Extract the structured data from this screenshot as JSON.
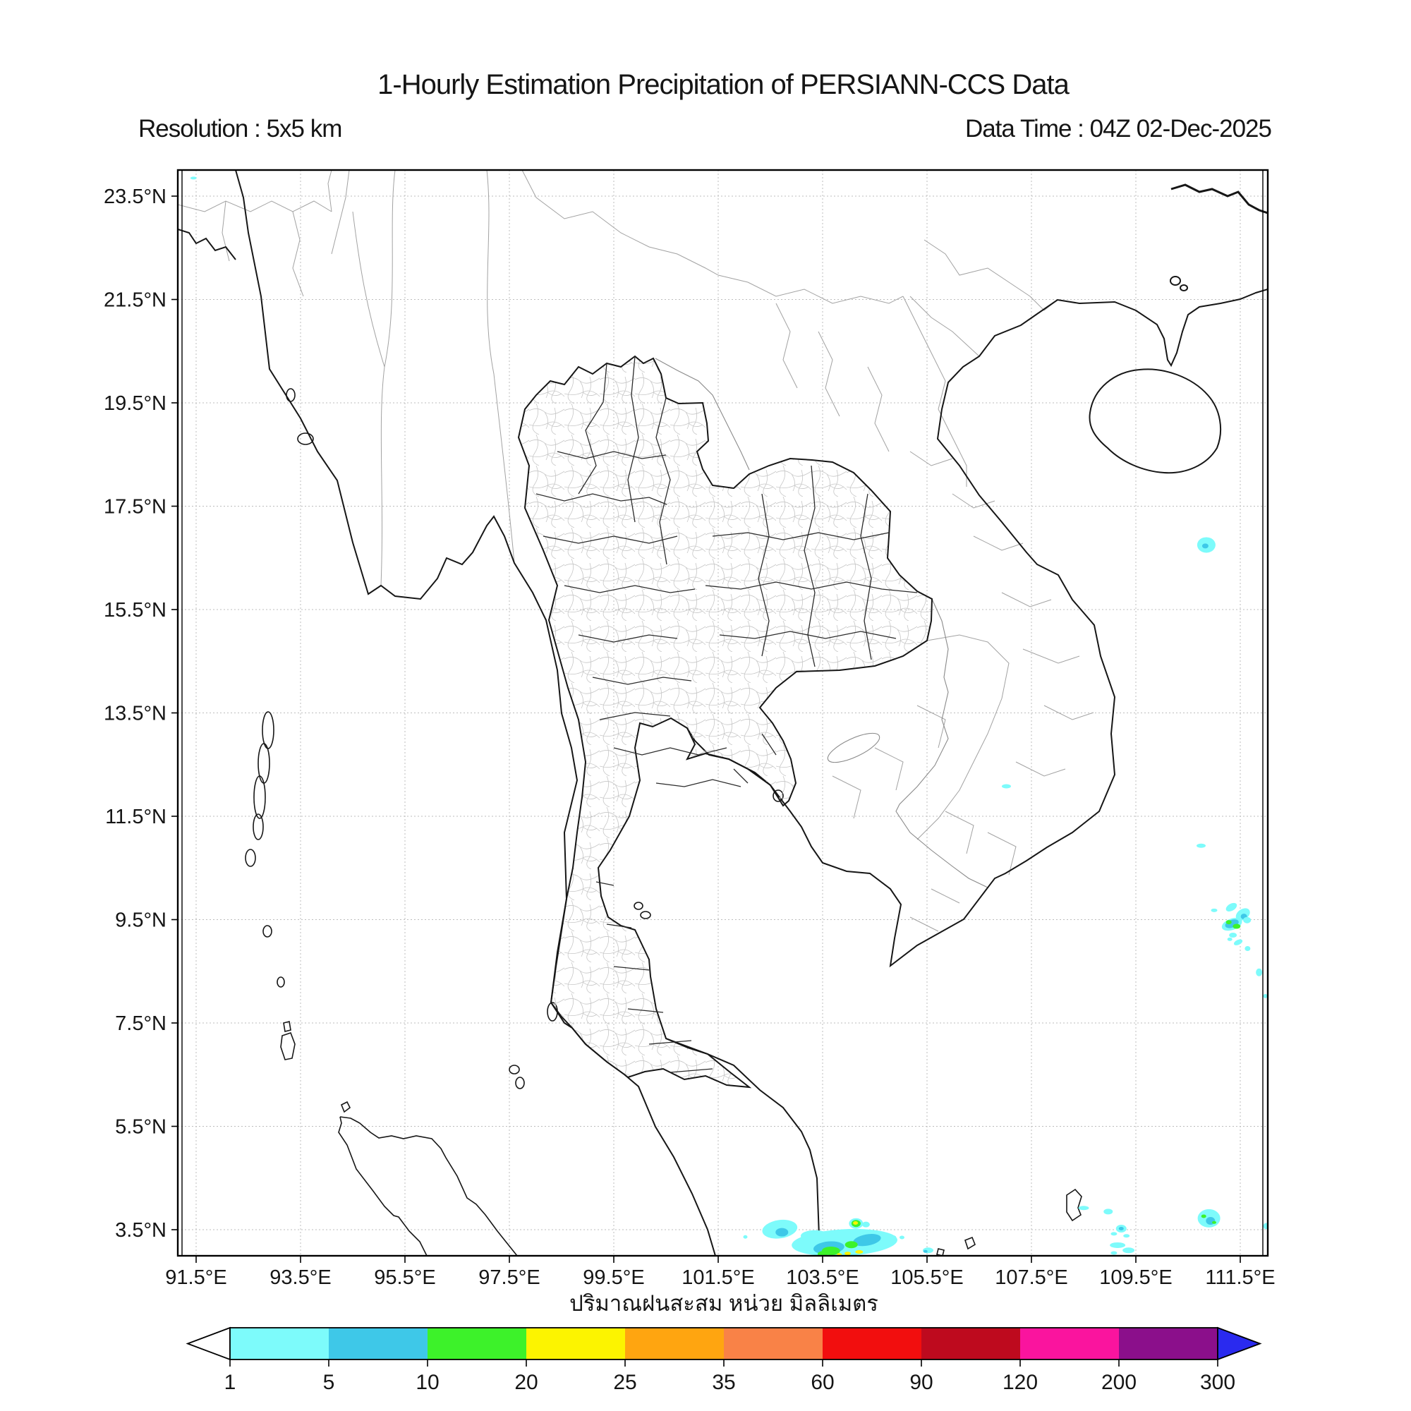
{
  "header": {
    "title": "1-Hourly Estimation Precipitation of PERSIANN-CCS Data",
    "resolution_label": "Resolution : 5x5 km",
    "data_time_label": "Data Time : 04Z 02-Dec-2025"
  },
  "map": {
    "lat_ticks": [
      {
        "value": 23.5,
        "label": "23.5°N"
      },
      {
        "value": 21.5,
        "label": "21.5°N"
      },
      {
        "value": 19.5,
        "label": "19.5°N"
      },
      {
        "value": 17.5,
        "label": "17.5°N"
      },
      {
        "value": 15.5,
        "label": "15.5°N"
      },
      {
        "value": 13.5,
        "label": "13.5°N"
      },
      {
        "value": 11.5,
        "label": "11.5°N"
      },
      {
        "value": 9.5,
        "label": "9.5°N"
      },
      {
        "value": 7.5,
        "label": "7.5°N"
      },
      {
        "value": 5.5,
        "label": "5.5°N"
      },
      {
        "value": 3.5,
        "label": "3.5°N"
      }
    ],
    "lon_ticks": [
      {
        "value": 91.5,
        "label": "91.5°E"
      },
      {
        "value": 93.5,
        "label": "93.5°E"
      },
      {
        "value": 95.5,
        "label": "95.5°E"
      },
      {
        "value": 97.5,
        "label": "97.5°E"
      },
      {
        "value": 99.5,
        "label": "99.5°E"
      },
      {
        "value": 101.5,
        "label": "101.5°E"
      },
      {
        "value": 103.5,
        "label": "103.5°E"
      },
      {
        "value": 105.5,
        "label": "105.5°E"
      },
      {
        "value": 107.5,
        "label": "107.5°E"
      },
      {
        "value": 109.5,
        "label": "109.5°E"
      },
      {
        "value": 111.5,
        "label": "111.5°E"
      }
    ]
  },
  "colorbar": {
    "caption": "ปริมาณฝนสะสม หน่วย มิลลิเมตร",
    "tick_labels": [
      "1",
      "5",
      "10",
      "20",
      "25",
      "35",
      "60",
      "90",
      "120",
      "200",
      "300"
    ],
    "segment_colors": [
      "#7DFBFB",
      "#3EC8E8",
      "#3DF22A",
      "#FCF400",
      "#FFA510",
      "#F98247",
      "#F20E0E",
      "#BE0A1E",
      "#FA149E",
      "#8B0F8B"
    ],
    "under_arrow_color": "#FFFFFF",
    "over_arrow_color": "#2A2AEF"
  },
  "chart_data": {
    "type": "heatmap",
    "title": "1-Hourly Estimation Precipitation of PERSIANN-CCS Data",
    "units": "mm",
    "resolution": "5x5 km",
    "data_time": "04Z 02-Dec-2025",
    "lon_range": [
      91.1,
      112.0
    ],
    "lat_range": [
      3.0,
      24.0
    ],
    "grid": "dotted 2-degree graticule",
    "scale_levels": [
      1,
      5,
      10,
      20,
      25,
      35,
      60,
      90,
      120,
      200,
      300
    ],
    "scale_colors": [
      "#7DFBFB",
      "#3EC8E8",
      "#3DF22A",
      "#FCF400",
      "#FFA510",
      "#F98247",
      "#F20E0E",
      "#BE0A1E",
      "#FA149E",
      "#8B0F8B"
    ],
    "cell_format": [
      "lon_deg_e",
      "lat_deg_n",
      "width_px",
      "height_px",
      "color_index",
      "rotation_deg"
    ],
    "precip_cells": [
      [
        91.45,
        23.85,
        9,
        4,
        0,
        0
      ],
      [
        110.85,
        16.75,
        26,
        22,
        0,
        0
      ],
      [
        110.83,
        16.73,
        9,
        7,
        1,
        0
      ],
      [
        107.02,
        12.08,
        13,
        6,
        0,
        0
      ],
      [
        110.75,
        10.93,
        13,
        6,
        0,
        0
      ],
      [
        111.33,
        9.74,
        17,
        10,
        0,
        -30
      ],
      [
        111.55,
        9.6,
        22,
        15,
        0,
        -35
      ],
      [
        111.57,
        9.56,
        9,
        8,
        1,
        0
      ],
      [
        111.34,
        9.41,
        30,
        16,
        0,
        -20
      ],
      [
        111.34,
        9.42,
        20,
        11,
        1,
        -20
      ],
      [
        111.28,
        9.45,
        8,
        6,
        2,
        0
      ],
      [
        111.43,
        9.37,
        11,
        7,
        2,
        0
      ],
      [
        111.63,
        9.49,
        11,
        9,
        0,
        0
      ],
      [
        111.0,
        9.68,
        9,
        5,
        0,
        0
      ],
      [
        111.36,
        9.2,
        11,
        7,
        0,
        0
      ],
      [
        111.3,
        9.12,
        7,
        5,
        0,
        0
      ],
      [
        111.46,
        9.06,
        13,
        7,
        0,
        -25
      ],
      [
        111.64,
        8.94,
        8,
        7,
        0,
        0
      ],
      [
        111.86,
        8.48,
        9,
        11,
        0,
        0
      ],
      [
        111.98,
        8.02,
        6,
        6,
        0,
        0
      ],
      [
        102.68,
        3.51,
        50,
        26,
        0,
        -8
      ],
      [
        102.72,
        3.45,
        18,
        12,
        1,
        0
      ],
      [
        102.02,
        3.36,
        6,
        5,
        0,
        0
      ],
      [
        103.92,
        3.25,
        150,
        38,
        0,
        -3
      ],
      [
        103.35,
        3.38,
        40,
        16,
        0,
        0
      ],
      [
        103.62,
        3.15,
        44,
        18,
        1,
        -5
      ],
      [
        104.35,
        3.3,
        40,
        16,
        1,
        -10
      ],
      [
        103.66,
        3.09,
        26,
        12,
        2,
        0
      ],
      [
        104.05,
        3.21,
        18,
        10,
        2,
        0
      ],
      [
        103.5,
        3.03,
        14,
        8,
        2,
        0
      ],
      [
        103.98,
        3.04,
        9,
        5,
        3,
        0
      ],
      [
        104.2,
        3.07,
        11,
        5,
        3,
        0
      ],
      [
        103.82,
        3.02,
        7,
        4,
        3,
        0
      ],
      [
        104.14,
        3.62,
        20,
        15,
        0,
        0
      ],
      [
        104.14,
        3.62,
        13,
        10,
        2,
        0
      ],
      [
        104.13,
        3.63,
        7,
        5,
        3,
        0
      ],
      [
        104.33,
        3.6,
        11,
        8,
        0,
        0
      ],
      [
        104.85,
        3.35,
        9,
        6,
        0,
        0
      ],
      [
        105.02,
        3.35,
        7,
        5,
        0,
        0
      ],
      [
        105.52,
        3.1,
        15,
        8,
        0,
        0
      ],
      [
        105.47,
        3.08,
        6,
        4,
        1,
        0
      ],
      [
        108.5,
        3.92,
        15,
        6,
        0,
        0
      ],
      [
        108.97,
        3.85,
        13,
        8,
        0,
        0
      ],
      [
        109.22,
        3.52,
        15,
        11,
        0,
        0
      ],
      [
        109.22,
        3.52,
        7,
        5,
        1,
        0
      ],
      [
        109.08,
        3.42,
        9,
        5,
        0,
        0
      ],
      [
        109.32,
        3.38,
        9,
        5,
        0,
        0
      ],
      [
        109.15,
        3.2,
        22,
        8,
        0,
        0
      ],
      [
        109.36,
        3.1,
        17,
        8,
        0,
        0
      ],
      [
        109.08,
        3.05,
        9,
        5,
        0,
        0
      ],
      [
        110.9,
        3.72,
        32,
        26,
        0,
        0
      ],
      [
        110.93,
        3.67,
        13,
        11,
        1,
        0
      ],
      [
        110.8,
        3.76,
        7,
        5,
        2,
        0
      ],
      [
        111.0,
        3.64,
        6,
        4,
        2,
        0
      ],
      [
        112.0,
        3.57,
        9,
        9,
        0,
        0
      ]
    ]
  }
}
